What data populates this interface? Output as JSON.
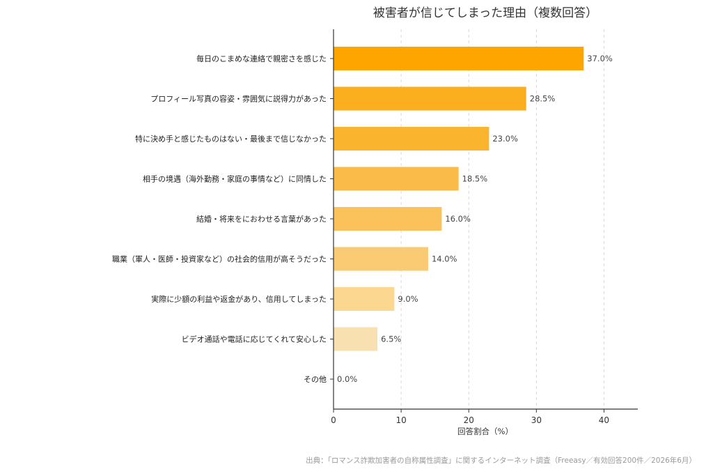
{
  "chart_data": {
    "type": "bar",
    "orientation": "horizontal",
    "title": "被害者が信じてしまった理由（複数回答）",
    "xlabel": "回答割合（%）",
    "ylabel": "",
    "xlim": [
      0,
      45
    ],
    "xticks": [
      0,
      10,
      20,
      30,
      40
    ],
    "grid": "x-dashed",
    "value_suffix": "%",
    "categories": [
      "毎日のこまめな連絡で親密さを感じた",
      "プロフィール写真の容姿・雰囲気に説得力があった",
      "特に決め手と感じたものはない・最後まで信じなかった",
      "相手の境遇（海外勤務・家庭の事情など）に同情した",
      "結婚・将来をにおわせる言葉があった",
      "職業（軍人・医師・投資家など）の社会的信用が高そうだった",
      "実際に少額の利益や返金があり、信用してしまった",
      "ビデオ通話や電話に応じてくれて安心した",
      "その他"
    ],
    "values": [
      37.0,
      28.5,
      23.0,
      18.5,
      16.0,
      14.0,
      9.0,
      6.5,
      0.0
    ],
    "value_labels": [
      "37.0%",
      "28.5%",
      "23.0%",
      "18.5%",
      "16.0%",
      "14.0%",
      "9.0%",
      "6.5%",
      "0.0%"
    ],
    "colors": [
      "#FFA500",
      "#FBAF1E",
      "#FAB42E",
      "#FBBB48",
      "#FBC25C",
      "#FBCB74",
      "#FBD790",
      "#F9E0B0",
      "#FAF0DC"
    ]
  },
  "source_note": "出典：「ロマンス詐欺加害者の自称属性調査」に関するインターネット調査（Freeasy／有効回答200件／2026年6月）"
}
